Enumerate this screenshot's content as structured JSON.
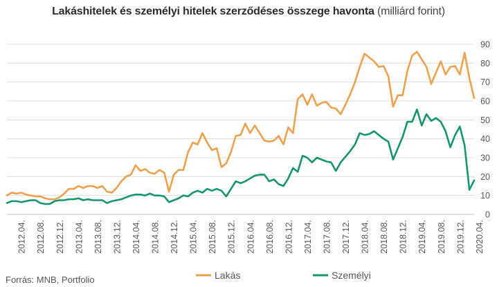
{
  "chart_data": {
    "type": "line",
    "title": "Lakáshitelek és személyi hitelek szerződéses összege havonta",
    "title_unit": "(milliárd forint)",
    "source": "Forrás: MNB, Portfolio",
    "ylim": [
      0,
      90
    ],
    "yticks": [
      0,
      10,
      20,
      30,
      40,
      50,
      60,
      70,
      80,
      90
    ],
    "x_axis_labels": [
      "2012.04.",
      "2012.08.",
      "2012.12.",
      "2013.04.",
      "2013.08.",
      "2013.12.",
      "2014.04.",
      "2014.08.",
      "2014.12.",
      "2015.04.",
      "2015.08.",
      "2015.12.",
      "2016.04.",
      "2016.08.",
      "2016.12.",
      "2017.04.",
      "2017.08.",
      "2017.12.",
      "2018.04.",
      "2018.08.",
      "2018.12.",
      "2019.04.",
      "2019.08.",
      "2019.12.",
      "2020.04."
    ],
    "grid": true,
    "legend_position": "bottom",
    "x_start": "2012-01",
    "series": [
      {
        "name": "Lakás",
        "color": "#F0A04B",
        "values": [
          10,
          11.5,
          11,
          11.5,
          10.5,
          10,
          9.5,
          9.5,
          8.5,
          8,
          8,
          9,
          11,
          13.5,
          13.5,
          15,
          14,
          15,
          15,
          14,
          15,
          12,
          11.5,
          14,
          17.5,
          20,
          21,
          26,
          23,
          24,
          22,
          21.5,
          23.5,
          22,
          12,
          21,
          23.5,
          23.5,
          33,
          38,
          37,
          43,
          38,
          34,
          35,
          25,
          27,
          33,
          41.5,
          42,
          48,
          43,
          47,
          43,
          39,
          38.5,
          39,
          41.5,
          37,
          46,
          43,
          61,
          63.5,
          58,
          63.5,
          57.5,
          59,
          59.5,
          56.5,
          56,
          53,
          58,
          63.5,
          70,
          78,
          85,
          83,
          81,
          78,
          78.5,
          73,
          57,
          63,
          63,
          76,
          84,
          86,
          82,
          78,
          69,
          75,
          81,
          74,
          78,
          78.5,
          74,
          85.5,
          72,
          61.5
        ]
      },
      {
        "name": "Személyi",
        "color": "#14956F",
        "values": [
          6,
          7,
          7,
          6.5,
          7,
          7.5,
          7.5,
          6,
          5.5,
          5.5,
          7,
          7.5,
          7.5,
          8,
          8,
          8.5,
          7.5,
          8,
          7.5,
          7.5,
          7.5,
          6,
          7,
          7.5,
          8,
          9,
          10,
          10.5,
          10.5,
          10,
          11,
          10,
          10,
          9.5,
          6.5,
          7.5,
          8.5,
          10,
          9.5,
          11.5,
          12.5,
          11.5,
          13.5,
          12.5,
          13.5,
          12.5,
          9.5,
          13.5,
          17.5,
          16.5,
          17.5,
          19,
          20.5,
          21,
          21,
          17.5,
          18.5,
          16,
          15,
          19,
          24.5,
          22.5,
          31,
          30,
          27.5,
          30,
          29,
          28,
          27.5,
          23,
          27.5,
          30.5,
          33.5,
          37,
          43,
          42,
          42.5,
          44,
          42,
          40,
          38.5,
          29,
          35,
          41,
          49,
          49,
          55.5,
          47,
          53,
          49.5,
          51,
          49,
          44,
          35.5,
          42,
          46.5,
          36.5,
          13,
          18
        ]
      }
    ]
  }
}
